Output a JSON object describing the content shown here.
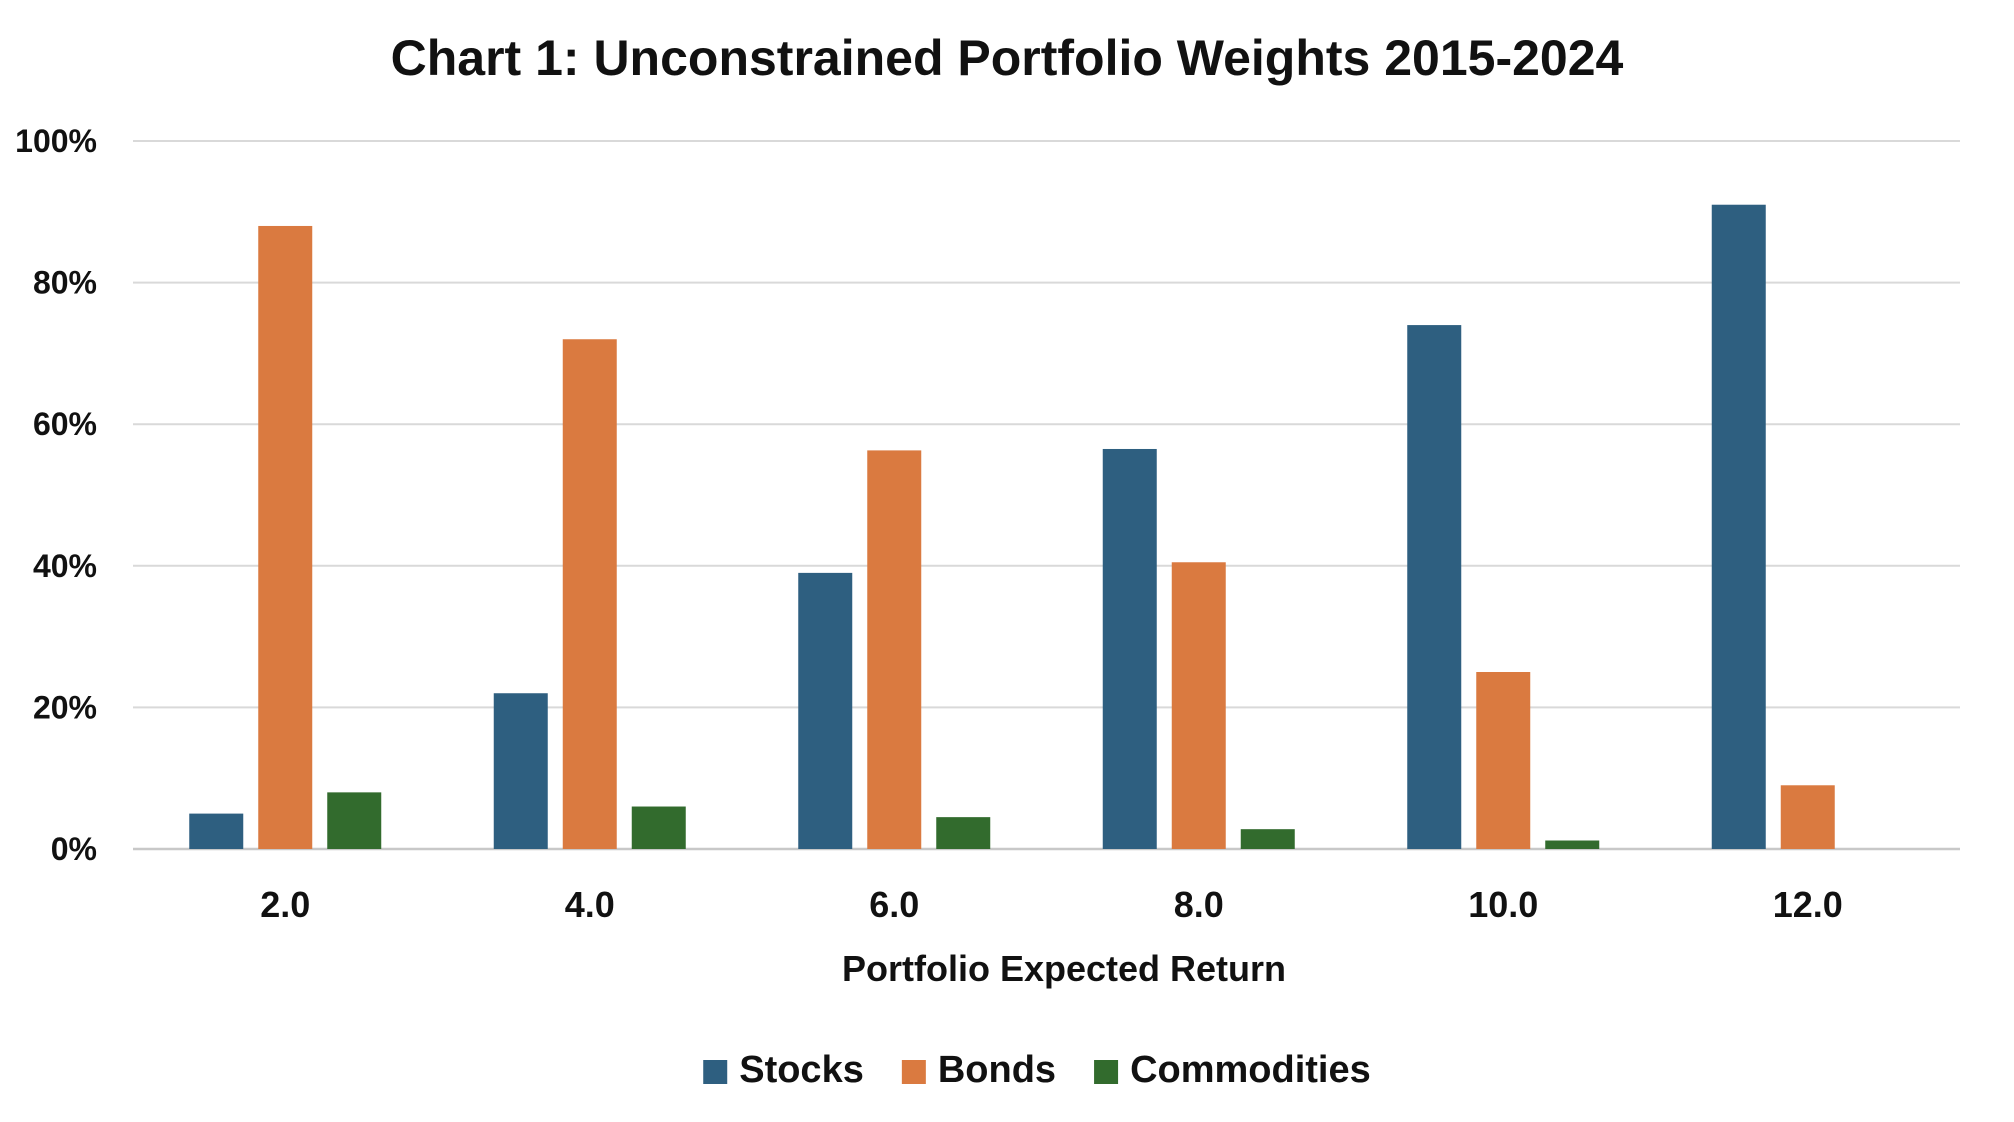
{
  "chart_data": {
    "type": "bar",
    "title": "Chart 1: Unconstrained Portfolio Weights 2015-2024",
    "xlabel": "Portfolio Expected Return",
    "ylabel": "",
    "categories": [
      "2.0",
      "4.0",
      "6.0",
      "8.0",
      "10.0",
      "12.0"
    ],
    "y_ticks": [
      "0%",
      "20%",
      "40%",
      "60%",
      "80%",
      "100%"
    ],
    "ylim": [
      0,
      100
    ],
    "grid": true,
    "legend_position": "bottom",
    "series": [
      {
        "name": "Stocks",
        "color": "#2e5f80",
        "values": [
          5,
          22,
          39,
          56.5,
          74,
          91
        ]
      },
      {
        "name": "Bonds",
        "color": "#da7a40",
        "values": [
          88,
          72,
          56.3,
          40.5,
          25,
          9
        ]
      },
      {
        "name": "Commodities",
        "color": "#326b2d",
        "values": [
          8,
          6,
          4.5,
          2.8,
          1.2,
          0
        ]
      }
    ]
  }
}
